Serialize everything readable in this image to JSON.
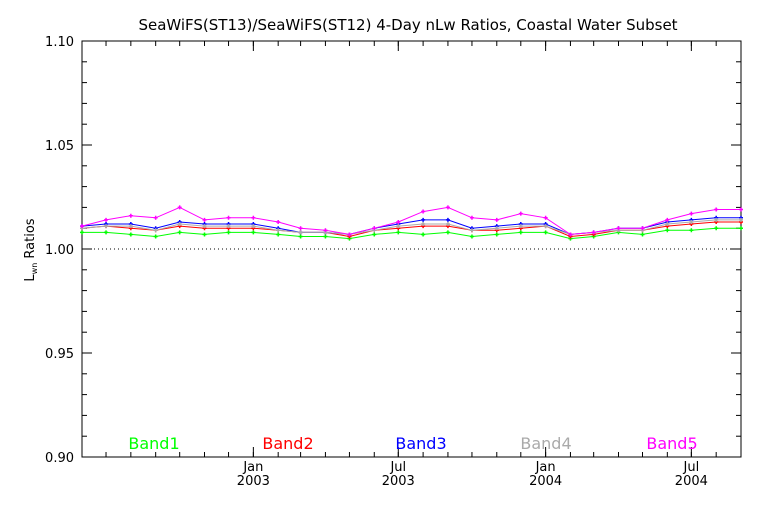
{
  "chart_data": {
    "type": "line",
    "title": "SeaWiFS(ST13)/SeaWiFS(ST12) 4-Day nLw Ratios, Coastal Water Subset",
    "ylabel_main": "L",
    "ylabel_sub": "wn",
    "ylabel_rest": " Ratios",
    "ylim": [
      0.9,
      1.1
    ],
    "yticks": [
      "1.10",
      "1.05",
      "1.00",
      "0.95",
      "0.90"
    ],
    "xlim": [
      "2002-06-01",
      "2004-09-01"
    ],
    "xticks": [
      {
        "date": "2003-01-01",
        "month": "Jan",
        "year": "2003"
      },
      {
        "date": "2003-07-01",
        "month": "Jul",
        "year": "2003"
      },
      {
        "date": "2004-01-01",
        "month": "Jan",
        "year": "2004"
      },
      {
        "date": "2004-07-01",
        "month": "Jul",
        "year": "2004"
      }
    ],
    "reference_line": 1.0,
    "x": [
      "2002-06-01",
      "2002-07-01",
      "2002-08-01",
      "2002-09-01",
      "2002-10-01",
      "2002-11-01",
      "2002-12-01",
      "2003-01-01",
      "2003-02-01",
      "2003-03-01",
      "2003-04-01",
      "2003-05-01",
      "2003-06-01",
      "2003-07-01",
      "2003-08-01",
      "2003-09-01",
      "2003-10-01",
      "2003-11-01",
      "2003-12-01",
      "2004-01-01",
      "2004-02-01",
      "2004-03-01",
      "2004-04-01",
      "2004-05-01",
      "2004-06-01",
      "2004-07-01",
      "2004-08-01",
      "2004-09-01"
    ],
    "series": [
      {
        "name": "Band1",
        "color": "#00ff00",
        "values": [
          1.008,
          1.008,
          1.007,
          1.006,
          1.008,
          1.007,
          1.008,
          1.008,
          1.007,
          1.006,
          1.006,
          1.005,
          1.007,
          1.008,
          1.007,
          1.008,
          1.006,
          1.007,
          1.008,
          1.008,
          1.005,
          1.006,
          1.008,
          1.007,
          1.009,
          1.009,
          1.01,
          1.01
        ]
      },
      {
        "name": "Band2",
        "color": "#ff0000",
        "values": [
          1.01,
          1.011,
          1.01,
          1.009,
          1.011,
          1.01,
          1.01,
          1.01,
          1.009,
          1.008,
          1.008,
          1.006,
          1.009,
          1.01,
          1.011,
          1.011,
          1.009,
          1.009,
          1.01,
          1.011,
          1.006,
          1.007,
          1.009,
          1.009,
          1.011,
          1.012,
          1.013,
          1.013
        ]
      },
      {
        "name": "Band3",
        "color": "#0000ff",
        "values": [
          1.011,
          1.012,
          1.012,
          1.01,
          1.013,
          1.012,
          1.012,
          1.012,
          1.01,
          1.008,
          1.008,
          1.007,
          1.01,
          1.012,
          1.014,
          1.014,
          1.01,
          1.011,
          1.012,
          1.012,
          1.007,
          1.008,
          1.01,
          1.01,
          1.013,
          1.014,
          1.015,
          1.015
        ]
      },
      {
        "name": "Band4",
        "color": "#aaaaaa",
        "values": [
          1.01,
          1.011,
          1.011,
          1.009,
          1.012,
          1.011,
          1.011,
          1.011,
          1.009,
          1.008,
          1.008,
          1.007,
          1.009,
          1.011,
          1.012,
          1.012,
          1.009,
          1.01,
          1.011,
          1.011,
          1.007,
          1.008,
          1.009,
          1.009,
          1.012,
          1.013,
          1.014,
          1.014
        ]
      },
      {
        "name": "Band5",
        "color": "#ff00ff",
        "values": [
          1.011,
          1.014,
          1.016,
          1.015,
          1.02,
          1.014,
          1.015,
          1.015,
          1.013,
          1.01,
          1.009,
          1.007,
          1.01,
          1.013,
          1.018,
          1.02,
          1.015,
          1.014,
          1.017,
          1.015,
          1.007,
          1.008,
          1.01,
          1.01,
          1.014,
          1.017,
          1.019,
          1.019
        ]
      }
    ],
    "legend_placement": "bottom-inside",
    "grid": false
  }
}
